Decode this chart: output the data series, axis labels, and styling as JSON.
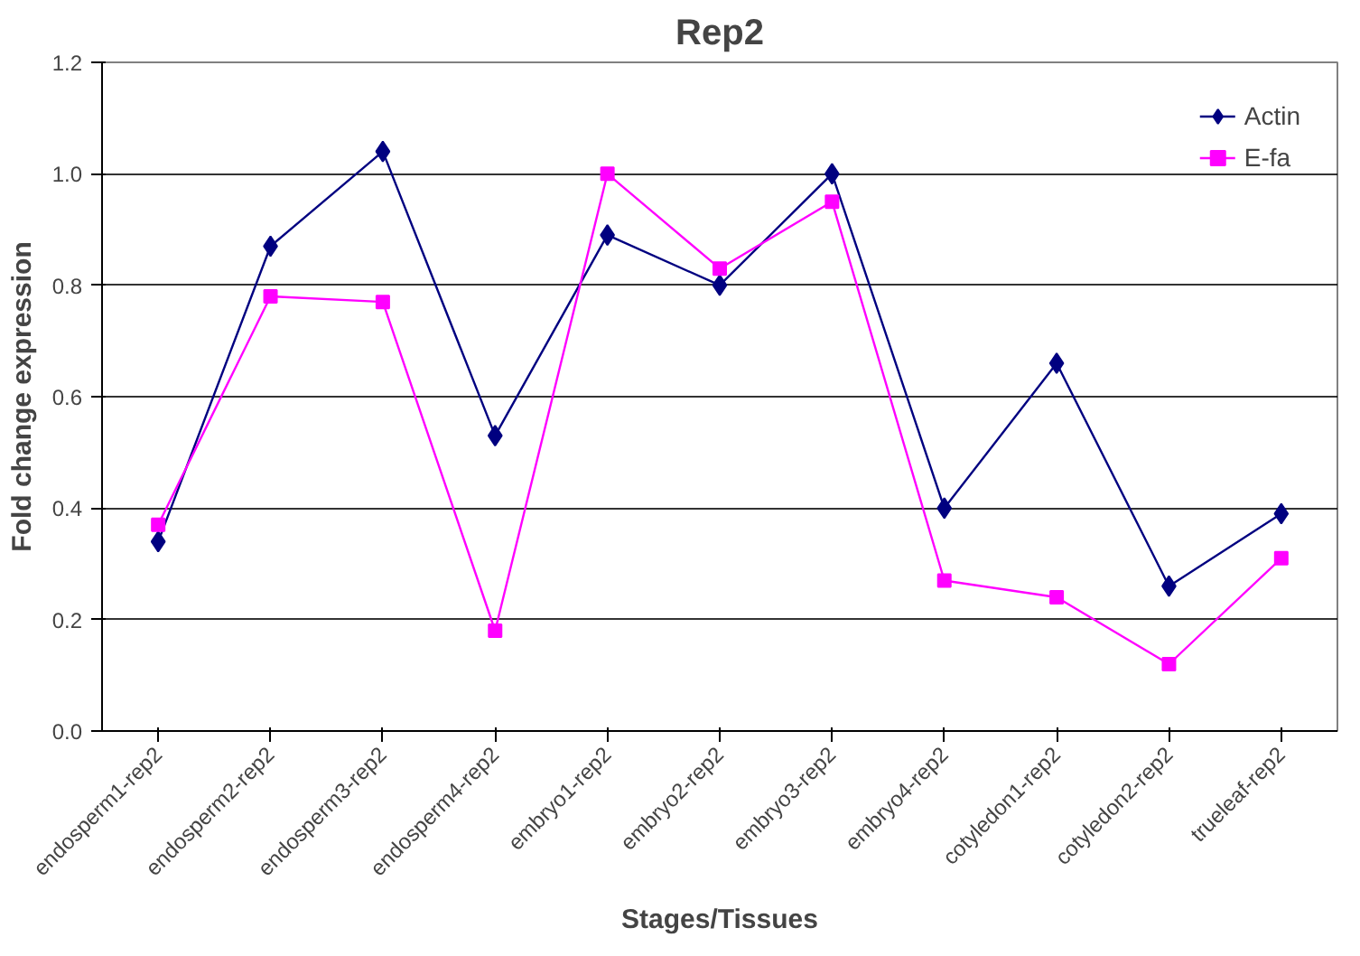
{
  "chart_data": {
    "type": "line",
    "title": "Rep2",
    "xlabel": "Stages/Tissues",
    "ylabel": "Fold change expression",
    "categories": [
      "endosperm1-rep2",
      "endosperm2-rep2",
      "endosperm3-rep2",
      "endosperm4-rep2",
      "embryo1-rep2",
      "embryo2-rep2",
      "embryo3-rep2",
      "embryo4-rep2",
      "cotyledon1-rep2",
      "cotyledon2-rep2",
      "trueleaf-rep2"
    ],
    "series": [
      {
        "name": "Actin",
        "color": "#000080",
        "marker": "diamond",
        "values": [
          0.34,
          0.87,
          1.04,
          0.53,
          0.89,
          0.8,
          1.0,
          0.4,
          0.66,
          0.26,
          0.39
        ]
      },
      {
        "name": "E-fa",
        "color": "#ff00ff",
        "marker": "square",
        "values": [
          0.37,
          0.78,
          0.77,
          0.18,
          1.0,
          0.83,
          0.95,
          0.27,
          0.24,
          0.12,
          0.31
        ]
      }
    ],
    "ylim": [
      0,
      1.2
    ],
    "yticks": [
      {
        "value": 0,
        "label": "0.0"
      },
      {
        "value": 0.2,
        "label": "0.2"
      },
      {
        "value": 0.4,
        "label": "0.4"
      },
      {
        "value": 0.6,
        "label": "0.6"
      },
      {
        "value": 0.8,
        "label": "0.8"
      },
      {
        "value": 1.0,
        "label": "1.0"
      },
      {
        "value": 1.2,
        "label": "1.2"
      }
    ],
    "grid": "y",
    "legend": "top right",
    "line_style": "solid"
  }
}
